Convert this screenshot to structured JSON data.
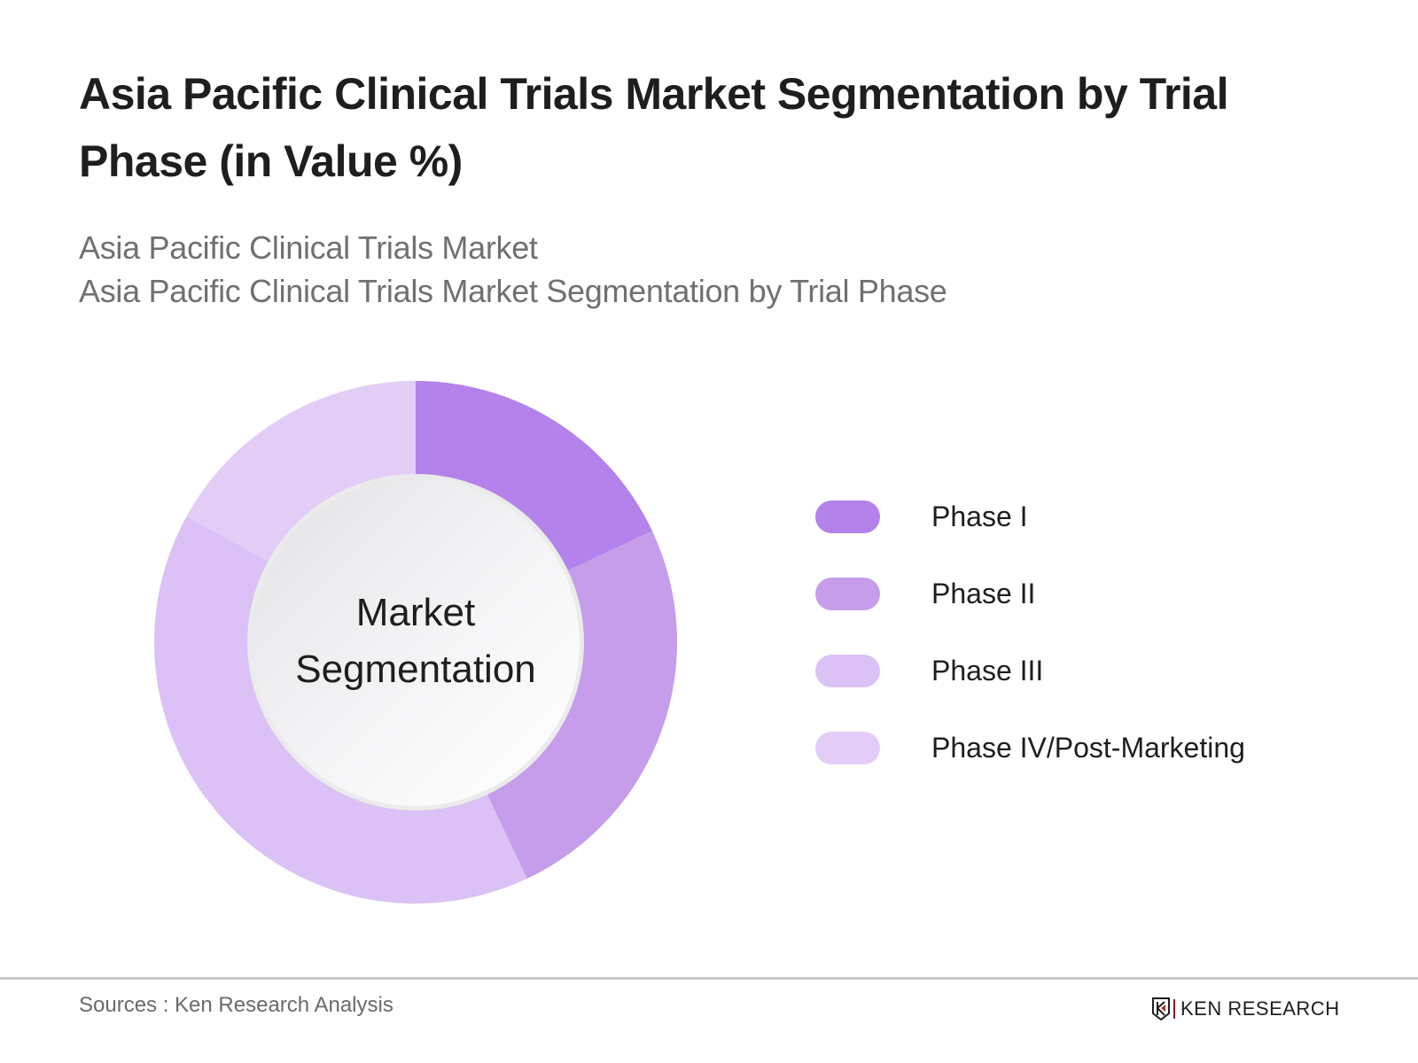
{
  "header": {
    "title": "Asia Pacific Clinical Trials Market Segmentation by Trial Phase (in Value %)",
    "subtitle_lines": [
      "Asia Pacific Clinical Trials Market",
      "Asia Pacific Clinical Trials Market Segmentation by Trial Phase"
    ]
  },
  "chart_data": {
    "type": "pie",
    "variant": "donut",
    "title": "Asia Pacific Clinical Trials Market Segmentation by Trial Phase (in Value %)",
    "center_label": [
      "Market",
      "Segmentation"
    ],
    "categories": [
      "Phase I",
      "Phase II",
      "Phase III",
      "Phase IV/Post-Marketing"
    ],
    "values": [
      18,
      25,
      40,
      17
    ],
    "unit": "%",
    "colors": [
      "#b382ea",
      "#c59deb",
      "#dbc1f5",
      "#e3cdf7"
    ],
    "start_angle_deg": 0,
    "direction": "clockwise",
    "legend_position": "right",
    "data_labels_shown": false
  },
  "legend": {
    "items": [
      {
        "label": "Phase I",
        "color": "#b382ea"
      },
      {
        "label": "Phase II",
        "color": "#c59deb"
      },
      {
        "label": "Phase III",
        "color": "#dbc1f5"
      },
      {
        "label": "Phase IV/Post-Marketing",
        "color": "#e3cdf7"
      }
    ]
  },
  "footer": {
    "sources": "Sources : Ken Research Analysis",
    "logo_text": "KEN RESEARCH"
  }
}
